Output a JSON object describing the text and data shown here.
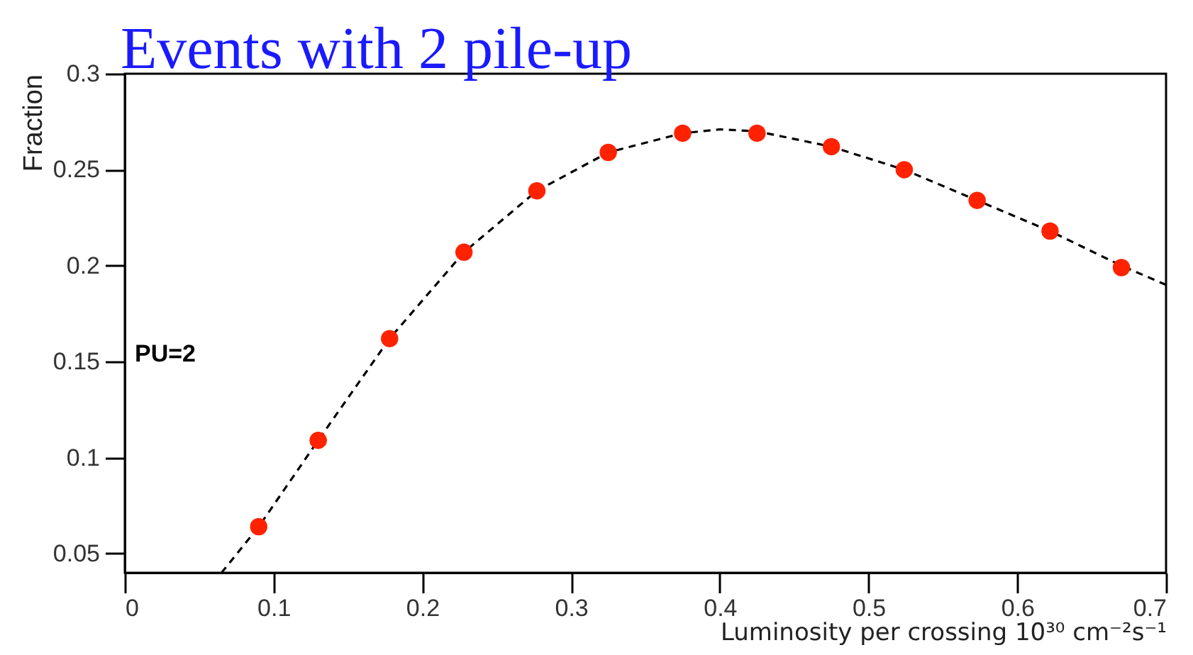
{
  "chart_data": {
    "type": "scatter",
    "title": "Events with 2 pile-up",
    "xlabel": "Luminosity per crossing 10³⁰ cm⁻²s⁻¹",
    "ylabel": "Fraction",
    "annotations": [
      "PU=2"
    ],
    "x": [
      0.09,
      0.13,
      0.178,
      0.228,
      0.277,
      0.325,
      0.375,
      0.425,
      0.475,
      0.524,
      0.573,
      0.622,
      0.67
    ],
    "series": [
      {
        "type": "scatter",
        "color": "#ff2200",
        "marker": "circle",
        "values": [
          0.064,
          0.109,
          0.162,
          0.207,
          0.239,
          0.259,
          0.269,
          0.269,
          0.262,
          0.25,
          0.234,
          0.218,
          0.199
        ]
      },
      {
        "type": "line",
        "color": "#000000",
        "line_style": "dashed",
        "marker": "none",
        "x": [
          0.065,
          0.09,
          0.13,
          0.178,
          0.228,
          0.277,
          0.325,
          0.375,
          0.4,
          0.425,
          0.475,
          0.524,
          0.573,
          0.622,
          0.67,
          0.7
        ],
        "values": [
          0.04,
          0.064,
          0.109,
          0.162,
          0.207,
          0.239,
          0.259,
          0.269,
          0.271,
          0.27,
          0.262,
          0.25,
          0.234,
          0.218,
          0.2,
          0.19
        ]
      }
    ],
    "xlim": [
      0,
      0.7
    ],
    "ylim": [
      0.04,
      0.3
    ],
    "xticks": [
      0,
      0.1,
      0.2,
      0.3,
      0.4,
      0.5,
      0.6,
      0.7
    ],
    "yticks": [
      0.05,
      0.1,
      0.15,
      0.2,
      0.25,
      0.3
    ],
    "grid": false
  }
}
